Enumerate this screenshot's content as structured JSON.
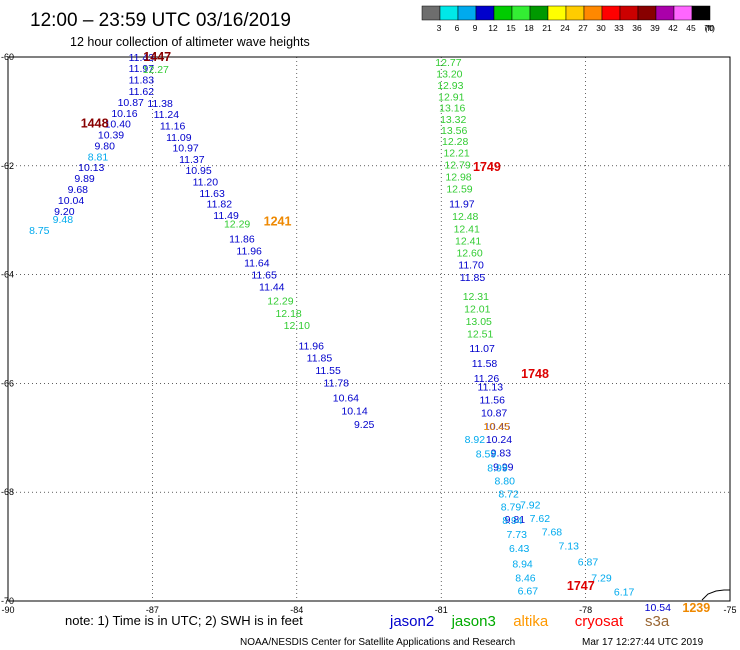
{
  "header": {
    "title": "12:00 – 23:59 UTC 03/16/2019",
    "subtitle": "12 hour collection of altimeter wave heights"
  },
  "note": "note: 1) Time is in UTC; 2) SWH is in feet",
  "credit": {
    "left": "NOAA/NESDIS Center for Satellite Applications and Research",
    "right": "Mar 17 12:27:44 UTC 2019"
  },
  "colorbar": {
    "unit": "(ft)",
    "labels": [
      "3",
      "6",
      "9",
      "12",
      "15",
      "18",
      "21",
      "24",
      "27",
      "30",
      "33",
      "36",
      "39",
      "42",
      "45",
      "70"
    ],
    "colors": [
      "#6e6e6e",
      "#00e8e8",
      "#00aaee",
      "#0000cc",
      "#00cc00",
      "#33ee33",
      "#009900",
      "#ffff00",
      "#ffcc00",
      "#ff8800",
      "#ff0000",
      "#cc0000",
      "#880000",
      "#aa00aa",
      "#ff66ff",
      "#000000"
    ]
  },
  "legend": [
    {
      "name": "jason2",
      "color": "#0000cc"
    },
    {
      "name": "jason3",
      "color": "#00aa00"
    },
    {
      "name": "altika",
      "color": "#ff9900"
    },
    {
      "name": "cryosat",
      "color": "#ff0000"
    },
    {
      "name": "s3a",
      "color": "#996633"
    }
  ],
  "chart_data": {
    "type": "scatter",
    "title": "12:00 – 23:59 UTC 03/16/2019",
    "subtitle": "12 hour collection of altimeter wave heights",
    "xlim": [
      -90,
      -75
    ],
    "ylim": [
      -70,
      -60
    ],
    "xticks": [
      "-90",
      "-87",
      "-84",
      "-81",
      "-78",
      "-75"
    ],
    "yticks": [
      "-60",
      "-62",
      "-64",
      "-66",
      "-68",
      "-70"
    ],
    "unit": "ft",
    "tracks": [
      {
        "name": "jason2 descending (-87.2 to -80.7)",
        "color": "#0000cc",
        "points": [
          [
            -87.23,
            -60.07,
            "11.43"
          ],
          [
            -87.23,
            -60.28,
            "11.97"
          ],
          [
            -87.23,
            -60.49,
            "11.83"
          ],
          [
            -87.23,
            -60.7,
            "11.62"
          ],
          [
            -86.84,
            -60.92,
            "11.38"
          ],
          [
            -86.71,
            -61.12,
            "11.24"
          ],
          [
            -86.58,
            -61.33,
            "11.16"
          ],
          [
            -86.45,
            -61.54,
            "11.09"
          ],
          [
            -86.31,
            -61.74,
            "10.97"
          ],
          [
            -86.18,
            -61.95,
            "11.37"
          ],
          [
            -86.04,
            -62.15,
            "10.95"
          ],
          [
            -85.9,
            -62.36,
            "11.20"
          ],
          [
            -85.76,
            -62.57,
            "11.63"
          ],
          [
            -85.61,
            -62.77,
            "11.82"
          ],
          [
            -85.47,
            -62.98,
            "11.49"
          ],
          [
            -85.14,
            -63.41,
            "11.86"
          ],
          [
            -84.99,
            -63.63,
            "11.96"
          ],
          [
            -84.83,
            -63.85,
            "11.64"
          ],
          [
            -84.68,
            -64.07,
            "11.65"
          ],
          [
            -84.52,
            -64.29,
            "11.44"
          ],
          [
            -83.7,
            -65.38,
            "11.96"
          ],
          [
            -83.53,
            -65.6,
            "11.85"
          ],
          [
            -83.35,
            -65.83,
            "11.55"
          ],
          [
            -83.18,
            -66.06,
            "11.78"
          ],
          [
            -82.98,
            -66.33,
            "10.64"
          ],
          [
            -82.8,
            -66.57,
            "10.14"
          ],
          [
            -82.6,
            -66.82,
            "9.25"
          ]
        ]
      },
      {
        "name": "jason2 ascending (-89.3 to -86.7)",
        "color": "#0000cc",
        "points": [
          [
            -87.45,
            -60.9,
            "10.87"
          ],
          [
            -87.58,
            -61.1,
            "10.16"
          ],
          [
            -87.72,
            -61.3,
            "10.40"
          ],
          [
            -87.86,
            -61.5,
            "10.39"
          ],
          [
            -87.99,
            -61.7,
            "9.80"
          ],
          [
            -88.27,
            -62.1,
            "10.13"
          ],
          [
            -88.41,
            -62.3,
            "9.89"
          ],
          [
            -88.55,
            -62.5,
            "9.68"
          ],
          [
            -88.69,
            -62.7,
            "10.04"
          ],
          [
            -88.83,
            -62.9,
            "9.20"
          ]
        ]
      },
      {
        "name": "jason3 descending (-86.7 to -83.9)",
        "color": "#33cc33",
        "points": [
          [
            -86.93,
            -60.29,
            "12.27"
          ],
          [
            -85.24,
            -63.13,
            "12.29"
          ],
          [
            -84.34,
            -64.55,
            "12.29"
          ],
          [
            -84.17,
            -64.78,
            "12.18"
          ],
          [
            -84.0,
            -65.0,
            "12.10"
          ]
        ]
      },
      {
        "name": "jason3 (-81.0 to -80.2)",
        "color": "#33cc33",
        "points": [
          [
            -80.85,
            -60.17,
            "12.77"
          ],
          [
            -80.83,
            -60.38,
            "13.20"
          ],
          [
            -80.81,
            -60.59,
            "12.93"
          ],
          [
            -80.79,
            -60.8,
            "12.91"
          ],
          [
            -80.77,
            -61.0,
            "13.16"
          ],
          [
            -80.75,
            -61.21,
            "13.32"
          ],
          [
            -80.73,
            -61.42,
            "13.56"
          ],
          [
            -80.71,
            -61.62,
            "12.28"
          ],
          [
            -80.68,
            -61.83,
            "12.21"
          ],
          [
            -80.66,
            -62.05,
            "12.79"
          ],
          [
            -80.64,
            -62.27,
            "12.98"
          ],
          [
            -80.62,
            -62.49,
            "12.59"
          ],
          [
            -80.5,
            -63.0,
            "12.48"
          ],
          [
            -80.47,
            -63.23,
            "12.41"
          ],
          [
            -80.44,
            -63.45,
            "12.41"
          ],
          [
            -80.41,
            -63.67,
            "12.60"
          ],
          [
            -80.28,
            -64.47,
            "12.31"
          ],
          [
            -80.25,
            -64.7,
            "12.01"
          ],
          [
            -80.22,
            -64.93,
            "13.05"
          ],
          [
            -80.19,
            -65.16,
            "12.51"
          ]
        ]
      },
      {
        "name": "jason2 ascending (-80.8 to -79.3)",
        "color": "#0000cc",
        "points": [
          [
            -80.57,
            -62.77,
            "11.97"
          ],
          [
            -80.38,
            -63.89,
            "11.70"
          ],
          [
            -80.35,
            -64.12,
            "11.85"
          ],
          [
            -80.15,
            -65.42,
            "11.07"
          ],
          [
            -80.1,
            -65.7,
            "11.58"
          ],
          [
            -80.06,
            -65.97,
            "11.26"
          ],
          [
            -79.98,
            -66.13,
            "11.13"
          ],
          [
            -79.94,
            -66.37,
            "11.56"
          ],
          [
            -79.9,
            -66.61,
            "10.87"
          ],
          [
            -79.84,
            -66.86,
            "10.45"
          ],
          [
            -79.8,
            -67.1,
            "10.24"
          ],
          [
            -79.76,
            -67.34,
            "9.83"
          ],
          [
            -79.71,
            -67.6,
            "9.99"
          ],
          [
            -79.47,
            -68.57,
            "9.81"
          ]
        ]
      },
      {
        "name": "altika",
        "color": "#ff9900",
        "points": [
          [
            -79.85,
            -66.86,
            "10.45"
          ]
        ]
      },
      {
        "name": "s3a (-88.9 to -79.5)",
        "color": "#00aaee",
        "points": [
          [
            -89.35,
            -63.25,
            "8.75"
          ],
          [
            -88.86,
            -63.05,
            "9.48"
          ],
          [
            -88.13,
            -61.9,
            "8.81"
          ],
          [
            -80.3,
            -67.1,
            "8.92"
          ],
          [
            -80.07,
            -67.36,
            "8.59"
          ],
          [
            -79.83,
            -67.62,
            "8.99"
          ],
          [
            -79.68,
            -67.86,
            "8.80"
          ],
          [
            -79.6,
            -68.1,
            "8.72"
          ],
          [
            -79.55,
            -68.34,
            "8.79"
          ],
          [
            -79.52,
            -68.58,
            "8.94"
          ],
          [
            -79.43,
            -68.84,
            "7.73"
          ],
          [
            -79.38,
            -69.1,
            "6.43"
          ],
          [
            -79.31,
            -69.38,
            "8.94"
          ],
          [
            -79.25,
            -69.64,
            "8.46"
          ],
          [
            -79.2,
            -69.88,
            "6.67"
          ]
        ]
      },
      {
        "name": "s3a (-78.9 to -76.5)",
        "color": "#00aaee",
        "points": [
          [
            -79.15,
            -68.3,
            "7.92"
          ],
          [
            -78.95,
            -68.55,
            "7.62"
          ],
          [
            -78.7,
            -68.8,
            "7.68"
          ],
          [
            -78.35,
            -69.05,
            "7.13"
          ],
          [
            -77.95,
            -69.35,
            "6.87"
          ],
          [
            -77.67,
            -69.64,
            "7.29"
          ],
          [
            -77.2,
            -69.9,
            "6.17"
          ]
        ]
      },
      {
        "name": "jason2 (-76.5)",
        "color": "#0000cc",
        "points": [
          [
            -76.5,
            -70.18,
            "10.54"
          ]
        ]
      }
    ],
    "time_labels": [
      {
        "text": "1447",
        "x": -86.9,
        "y": -60.07,
        "color": "#880000"
      },
      {
        "text": "1448",
        "x": -88.2,
        "y": -61.3,
        "color": "#880000"
      },
      {
        "text": "1749",
        "x": -80.05,
        "y": -62.1,
        "color": "#dd0000"
      },
      {
        "text": "1241",
        "x": -84.4,
        "y": -63.1,
        "color": "#ee8800"
      },
      {
        "text": "1748",
        "x": -79.05,
        "y": -65.9,
        "color": "#dd0000"
      },
      {
        "text": "1747",
        "x": -78.1,
        "y": -69.8,
        "color": "#dd0000"
      },
      {
        "text": "1239",
        "x": -75.7,
        "y": -70.2,
        "color": "#ee8800"
      }
    ]
  }
}
